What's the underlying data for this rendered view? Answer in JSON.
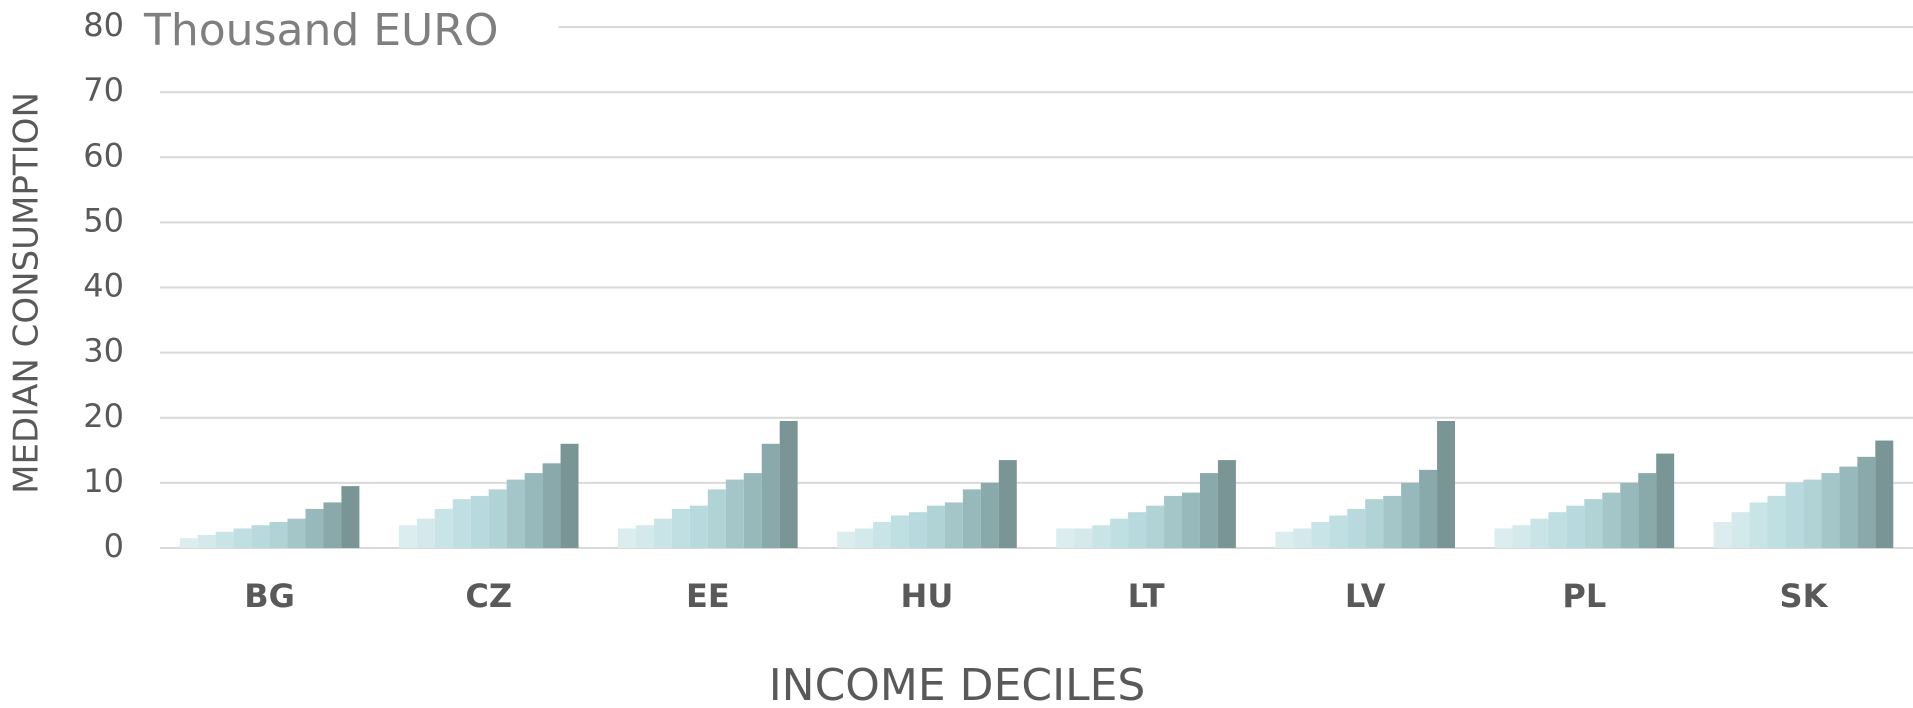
{
  "chart_data": {
    "type": "bar",
    "title": "Thousand EURO",
    "x_label": "INCOME DECILES",
    "y_label": "MEDIAN CONSUMPTION",
    "categories": [
      "BG",
      "CZ",
      "EE",
      "HU",
      "LT",
      "LV",
      "PL",
      "SK"
    ],
    "series": [
      {
        "color": "#dcedef",
        "values": [
          1.5,
          3.5,
          3,
          2.5,
          3,
          2.5,
          3,
          4
        ]
      },
      {
        "color": "#d3e9eb",
        "values": [
          2,
          4.5,
          3.5,
          3,
          3,
          3,
          3.5,
          5.5
        ]
      },
      {
        "color": "#c9e4e7",
        "values": [
          2.5,
          6,
          4.5,
          4,
          3.5,
          4,
          4.5,
          7
        ]
      },
      {
        "color": "#c0dfe2",
        "values": [
          3,
          7.5,
          6,
          5,
          4.5,
          5,
          5.5,
          8
        ]
      },
      {
        "color": "#b8dade",
        "values": [
          3.5,
          8,
          6.5,
          5.5,
          5.5,
          6,
          6.5,
          10
        ]
      },
      {
        "color": "#b0d3d6",
        "values": [
          4,
          9,
          9,
          6.5,
          6.5,
          7.5,
          7.5,
          10.5
        ]
      },
      {
        "color": "#a5c6c9",
        "values": [
          4.5,
          10.5,
          10.5,
          7,
          8,
          8,
          8.5,
          11.5
        ]
      },
      {
        "color": "#98b9bb",
        "values": [
          6,
          11.5,
          11.5,
          9,
          8.5,
          10,
          10,
          12.5
        ]
      },
      {
        "color": "#8aa9ab",
        "values": [
          7,
          13,
          16,
          10,
          11.5,
          12,
          11.5,
          14
        ]
      },
      {
        "color": "#7a9596",
        "values": [
          9.5,
          16,
          19.5,
          13.5,
          13.5,
          19.5,
          14.5,
          16.5
        ]
      }
    ],
    "ylim": [
      0,
      80
    ],
    "yticks": [
      0,
      10,
      20,
      30,
      40,
      50,
      60,
      70,
      80
    ],
    "grid": true
  }
}
